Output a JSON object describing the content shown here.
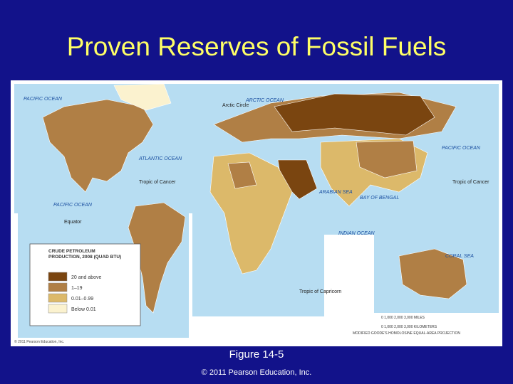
{
  "title": "Proven Reserves of Fossil Fuels",
  "map": {
    "labels": {
      "arctic_circle": "Arctic Circle",
      "arctic_ocean": "ARCTIC OCEAN",
      "pacific_ocean_north": "PACIFIC OCEAN",
      "atlantic_ocean": "ATLANTIC OCEAN",
      "pacific_ocean_east": "PACIFIC OCEAN",
      "pacific_ocean_west": "PACIFIC OCEAN",
      "indian_ocean": "INDIAN OCEAN",
      "arabian_sea": "ARABIAN SEA",
      "bay_of_bengal": "BAY OF BENGAL",
      "coral_sea": "CORAL SEA",
      "tropic_of_cancer_west": "Tropic of Cancer",
      "tropic_of_cancer_east": "Tropic of Cancer",
      "tropic_of_capricorn": "Tropic of Capricorn",
      "equator": "Equator",
      "credit": "© 2011 Pearson Education, Inc.",
      "projection": "MODIFIED GOODE'S HOMOLOSINE EQUAL-AREA PROJECTION",
      "scale_miles": "0      1,000     2,000     3,000 MILES",
      "scale_km": "0   1,000  2,000  3,000 KILOMETERS"
    },
    "legend": {
      "title": "CRUDE PETROLEUM PRODUCTION, 2008 (QUAD BTU)",
      "items": [
        {
          "label": "20 and above",
          "color": "#7a4510"
        },
        {
          "label": "1–19",
          "color": "#b07f45"
        },
        {
          "label": "0.01–0.99",
          "color": "#dcb96a"
        },
        {
          "label": "Below 0.01",
          "color": "#fbf2cf"
        }
      ]
    }
  },
  "caption": "Figure 14-5",
  "copyright": "© 2011 Pearson Education, Inc."
}
